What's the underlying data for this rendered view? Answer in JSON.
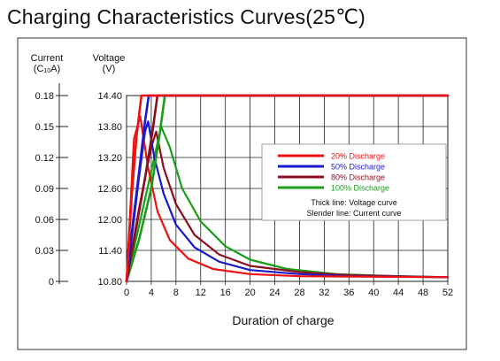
{
  "page": {
    "title": "Charging Characteristics Curves(25℃)"
  },
  "chart_data": {
    "type": "line",
    "title": "Charging Characteristics Curves(25℃)",
    "xlabel": "Duration of charge",
    "xticks": [
      0,
      4,
      8,
      12,
      16,
      20,
      24,
      28,
      32,
      36,
      40,
      44,
      48,
      52
    ],
    "xlim": [
      0,
      52
    ],
    "axes": {
      "current": {
        "label": "Current",
        "unit": "(C10A)",
        "ticks": [
          "0.18",
          "0.15",
          "0.12",
          "0.09",
          "0.06",
          "0.03",
          "0"
        ],
        "ylim": [
          0,
          0.18
        ]
      },
      "voltage": {
        "label": "Voltage",
        "unit": "(V)",
        "ticks": [
          "14.40",
          "13.80",
          "13.20",
          "12.60",
          "12.00",
          "11.40",
          "10.80"
        ],
        "ylim": [
          10.8,
          14.4
        ]
      }
    },
    "legend": {
      "placement": "center-right",
      "notes": [
        "Thick line:   Voltage curve",
        "Slender line: Current curve"
      ]
    },
    "series": [
      {
        "name": "20% Discharge",
        "color": "#ee1111",
        "voltage": {
          "x": [
            0,
            0.8,
            1.6,
            2.4,
            52
          ],
          "y": [
            10.8,
            12.4,
            13.6,
            14.4,
            14.4
          ]
        },
        "current": {
          "x": [
            0,
            1.2,
            2.2,
            3.5,
            5,
            7,
            10,
            14,
            20,
            28,
            52
          ],
          "y": [
            0,
            0.138,
            0.16,
            0.11,
            0.068,
            0.04,
            0.022,
            0.012,
            0.007,
            0.005,
            0.004
          ]
        }
      },
      {
        "name": "50% Discharge",
        "color": "#1a1acc",
        "voltage": {
          "x": [
            0,
            1,
            2,
            3,
            3.6,
            52
          ],
          "y": [
            10.8,
            11.9,
            12.9,
            13.9,
            14.4,
            14.4
          ]
        },
        "current": {
          "x": [
            0,
            1,
            2,
            3,
            3.5,
            4.5,
            6,
            8,
            11,
            15,
            20,
            28,
            36,
            52
          ],
          "y": [
            0,
            0.05,
            0.1,
            0.145,
            0.155,
            0.12,
            0.085,
            0.055,
            0.033,
            0.019,
            0.011,
            0.007,
            0.005,
            0.004
          ]
        }
      },
      {
        "name": "80% Discharge",
        "color": "#8b0e1e",
        "voltage": {
          "x": [
            0,
            1.5,
            3,
            4.2,
            5,
            52
          ],
          "y": [
            10.8,
            11.8,
            12.8,
            13.7,
            14.4,
            14.4
          ]
        },
        "current": {
          "x": [
            0,
            1,
            2,
            3,
            4,
            4.8,
            6,
            8,
            11,
            15,
            20,
            28,
            36,
            52
          ],
          "y": [
            0,
            0.035,
            0.07,
            0.1,
            0.13,
            0.145,
            0.11,
            0.075,
            0.045,
            0.026,
            0.015,
            0.009,
            0.006,
            0.004
          ]
        }
      },
      {
        "name": "100% Discharge",
        "color": "#1a9e1a",
        "voltage": {
          "x": [
            0,
            2,
            4,
            5.3,
            6.2,
            52
          ],
          "y": [
            10.8,
            11.6,
            12.6,
            13.6,
            14.4,
            14.4
          ]
        },
        "current": {
          "x": [
            0,
            1.5,
            3,
            4.5,
            5.6,
            7,
            9,
            12,
            16,
            20,
            26,
            34,
            44,
            52
          ],
          "y": [
            0,
            0.04,
            0.08,
            0.12,
            0.15,
            0.13,
            0.09,
            0.058,
            0.034,
            0.021,
            0.012,
            0.007,
            0.005,
            0.004
          ]
        }
      }
    ]
  }
}
